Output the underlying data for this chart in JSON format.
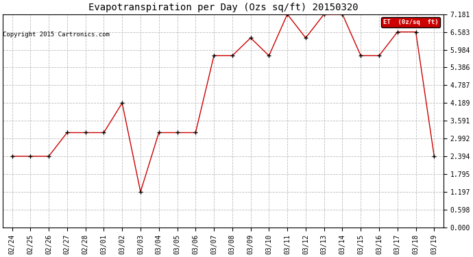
{
  "title": "Evapotranspiration per Day (Ozs sq/ft) 20150320",
  "copyright": "Copyright 2015 Cartronics.com",
  "legend_label": "ET  (0z/sq  ft)",
  "x_labels": [
    "02/24",
    "02/25",
    "02/26",
    "02/27",
    "02/28",
    "03/01",
    "03/02",
    "03/03",
    "03/04",
    "03/05",
    "03/06",
    "03/07",
    "03/08",
    "03/09",
    "03/10",
    "03/11",
    "03/12",
    "03/13",
    "03/14",
    "03/15",
    "03/16",
    "03/17",
    "03/18",
    "03/19"
  ],
  "y_values": [
    2.394,
    2.394,
    2.394,
    3.192,
    3.192,
    3.192,
    4.189,
    1.197,
    3.192,
    3.192,
    3.192,
    5.784,
    5.784,
    6.383,
    5.784,
    7.181,
    6.383,
    7.181,
    7.181,
    5.784,
    5.784,
    6.583,
    6.583,
    2.394
  ],
  "ylim": [
    0.0,
    7.181
  ],
  "yticks": [
    0.0,
    0.598,
    1.197,
    1.795,
    2.394,
    2.992,
    3.591,
    4.189,
    4.787,
    5.386,
    5.984,
    6.583,
    7.181
  ],
  "line_color": "#cc0000",
  "marker_color": "#000000",
  "grid_color": "#bbbbbb",
  "background_color": "#ffffff",
  "title_fontsize": 10,
  "tick_fontsize": 7,
  "copyright_fontsize": 6.5,
  "legend_bg": "#cc0000",
  "legend_text_color": "#ffffff"
}
